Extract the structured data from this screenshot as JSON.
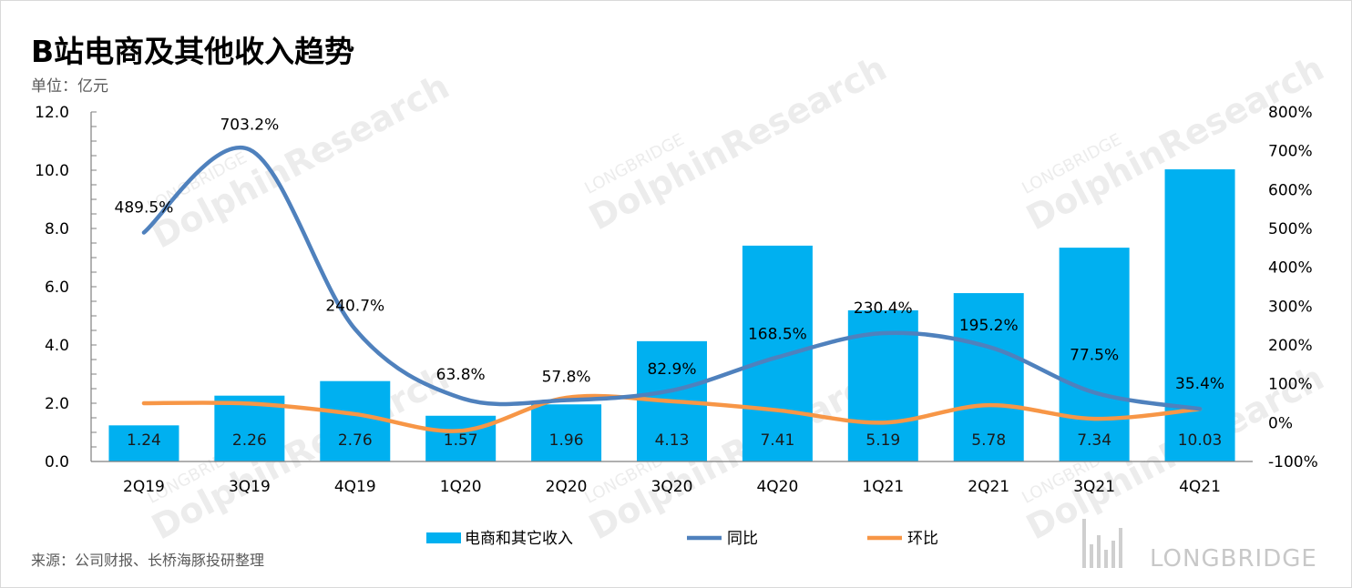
{
  "title": "B站电商及其他收入趋势",
  "unit": "单位：亿元",
  "source": "来源：公司财报、长桥海豚投研整理",
  "watermark": {
    "text1": "LONGBRIDGE",
    "text2": "DolphinResearch",
    "brand": "LONGBRIDGE"
  },
  "colors": {
    "bar": "#00b0f0",
    "yoy": "#4f81bd",
    "qoq": "#f79646",
    "axis": "#808080"
  },
  "chart_data": {
    "type": "bar",
    "categories": [
      "2Q19",
      "3Q19",
      "4Q19",
      "1Q20",
      "2Q20",
      "3Q20",
      "4Q20",
      "1Q21",
      "2Q21",
      "3Q21",
      "4Q21"
    ],
    "series": [
      {
        "name": "电商和其它收入",
        "type": "bar",
        "axis": "left",
        "values": [
          1.24,
          2.26,
          2.76,
          1.57,
          1.96,
          4.13,
          7.41,
          5.19,
          5.78,
          7.34,
          10.03
        ],
        "labels": [
          "1.24",
          "2.26",
          "2.76",
          "1.57",
          "1.96",
          "4.13",
          "7.41",
          "5.19",
          "5.78",
          "7.34",
          "10.03"
        ]
      },
      {
        "name": "同比",
        "type": "line",
        "axis": "right",
        "values": [
          489.5,
          703.2,
          240.7,
          63.8,
          57.8,
          82.9,
          168.5,
          230.4,
          195.2,
          77.5,
          35.4
        ],
        "labels": [
          "489.5%",
          "703.2%",
          "240.7%",
          "63.8%",
          "57.8%",
          "82.9%",
          "168.5%",
          "230.4%",
          "195.2%",
          "77.5%",
          "35.4%"
        ]
      },
      {
        "name": "环比",
        "type": "line",
        "axis": "right",
        "values": [
          50,
          49,
          22,
          -21,
          64,
          55,
          32,
          0,
          45,
          10,
          35
        ]
      }
    ],
    "y_left": {
      "range": [
        0,
        12
      ],
      "ticks": [
        "0.0",
        "2.0",
        "4.0",
        "6.0",
        "8.0",
        "10.0",
        "12.0"
      ]
    },
    "y_right": {
      "range": [
        -100,
        800
      ],
      "ticks": [
        "-100%",
        "0%",
        "100%",
        "200%",
        "300%",
        "400%",
        "500%",
        "600%",
        "700%",
        "800%"
      ]
    },
    "legend": {
      "position": "bottom",
      "items": [
        "电商和其它收入",
        "同比",
        "环比"
      ]
    },
    "grid": false
  }
}
